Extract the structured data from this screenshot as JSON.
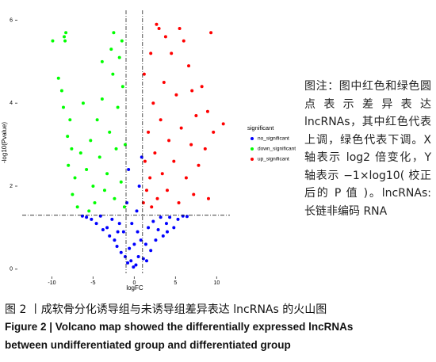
{
  "chart_data": {
    "type": "scatter",
    "xlabel": "logFC",
    "ylabel": "-log10(Pvalue)",
    "legend_title": "significant",
    "xlim": [
      -13.6,
      11.6
    ],
    "ylim": [
      -0.1,
      6.2
    ],
    "xticks": [
      -10,
      -5,
      0,
      5,
      10
    ],
    "yticks": [
      0,
      2,
      4,
      6
    ],
    "vlines": [
      -1,
      1
    ],
    "hline": 1.3,
    "series": [
      {
        "name": "no_significant",
        "color": "#0000ff",
        "x": [
          -5.8,
          -5.2,
          -4.6,
          -4.1,
          -3.8,
          -3.3,
          -3.0,
          -2.7,
          -2.4,
          -2.1,
          -1.8,
          -1.6,
          -1.3,
          -1.1,
          -0.9,
          -0.7,
          -0.6,
          -0.4,
          -0.3,
          -0.1,
          0,
          0.2,
          0.3,
          0.5,
          0.6,
          0.8,
          0.9,
          1.1,
          1.4,
          1.7,
          2.0,
          2.3,
          2.6,
          2.9,
          3.2,
          3.5,
          3.9,
          4.3,
          4.8,
          5.3,
          5.9,
          6.4,
          -6.3,
          -2.0,
          1.5,
          -0.8,
          0.4,
          4.0
        ],
        "values": [
          1.25,
          1.2,
          1.1,
          1.28,
          0.95,
          1.0,
          0.8,
          1.2,
          0.7,
          0.55,
          1.1,
          0.4,
          0.9,
          0.3,
          1.6,
          2.4,
          0.5,
          0.2,
          1.1,
          0.05,
          0.6,
          0.1,
          1.4,
          0.3,
          2.0,
          0.7,
          2.7,
          0.25,
          0.6,
          1.0,
          0.45,
          1.15,
          0.7,
          0.95,
          1.25,
          0.8,
          1.1,
          1.25,
          1.0,
          1.2,
          1.28,
          1.27,
          1.28,
          0.9,
          0.2,
          0.15,
          0.9,
          0.9
        ]
      },
      {
        "name": "down_significant",
        "color": "#00ff00",
        "x": [
          -9.9,
          -8.5,
          -8.4,
          -8.3,
          -8.8,
          -8.6,
          -7.8,
          -8.1,
          -7.6,
          -8.0,
          -7.2,
          -7.5,
          -6.9,
          -6.5,
          -5.8,
          -5.3,
          -5.0,
          -4.8,
          -4.5,
          -4.2,
          -3.9,
          -3.6,
          -3.3,
          -3.0,
          -2.8,
          -2.6,
          -2.4,
          -2.2,
          -2.0,
          -1.8,
          -1.6,
          -1.4,
          -1.2,
          -1.1,
          -3.9,
          -2.5,
          -1.5,
          -6.2,
          -5.5,
          -9.2
        ],
        "values": [
          5.5,
          5.6,
          5.5,
          5.7,
          4.3,
          3.9,
          3.6,
          3.2,
          2.9,
          2.5,
          2.2,
          1.8,
          1.5,
          2.8,
          2.4,
          3.1,
          2.0,
          1.6,
          3.6,
          2.7,
          4.1,
          1.9,
          2.3,
          3.3,
          5.3,
          4.7,
          1.7,
          2.9,
          3.9,
          5.1,
          2.1,
          4.4,
          1.5,
          3.0,
          5.0,
          5.7,
          5.5,
          4.0,
          1.4,
          4.6
        ]
      },
      {
        "name": "up_significant",
        "color": "#ff0000",
        "x": [
          1.1,
          1.3,
          1.5,
          1.7,
          1.9,
          2.1,
          2.3,
          2.5,
          2.7,
          2.8,
          3.0,
          3.2,
          3.4,
          3.6,
          3.8,
          4.0,
          4.2,
          4.5,
          4.8,
          5.1,
          5.4,
          5.7,
          6.0,
          6.3,
          6.6,
          6.9,
          7.2,
          7.5,
          7.8,
          8.2,
          8.6,
          9.0,
          9.3,
          9.6,
          10.8,
          1.2,
          2.0,
          5.5,
          7.0,
          8.9
        ],
        "values": [
          1.6,
          2.6,
          1.9,
          3.3,
          2.2,
          1.5,
          4.0,
          2.8,
          5.9,
          1.7,
          5.8,
          3.6,
          2.3,
          4.5,
          5.6,
          1.9,
          3.1,
          5.2,
          2.6,
          4.2,
          1.6,
          3.4,
          5.5,
          2.2,
          4.9,
          3.0,
          1.8,
          3.7,
          2.5,
          4.4,
          2.9,
          1.7,
          5.7,
          3.3,
          3.5,
          4.7,
          5.2,
          5.8,
          4.3,
          3.8
        ]
      }
    ]
  },
  "note": "图注：图中红色和绿色圆点表示差异表达 lncRNAs，其中红色代表上调，绿色代表下调。X 轴表示 log2 倍变化，Y 轴表示 −1×log10( 校正后的 P 值 )。lncRNAs: 长链非编码 RNA",
  "caption": {
    "cn": "图 2 丨成软骨分化诱导组与未诱导组差异表达 lncRNAs 的火山图",
    "en_line1": "Figure 2 | Volcano map showed the differentially expressed lncRNAs",
    "en_line2": "between undifferentiated group and differentiated group"
  }
}
